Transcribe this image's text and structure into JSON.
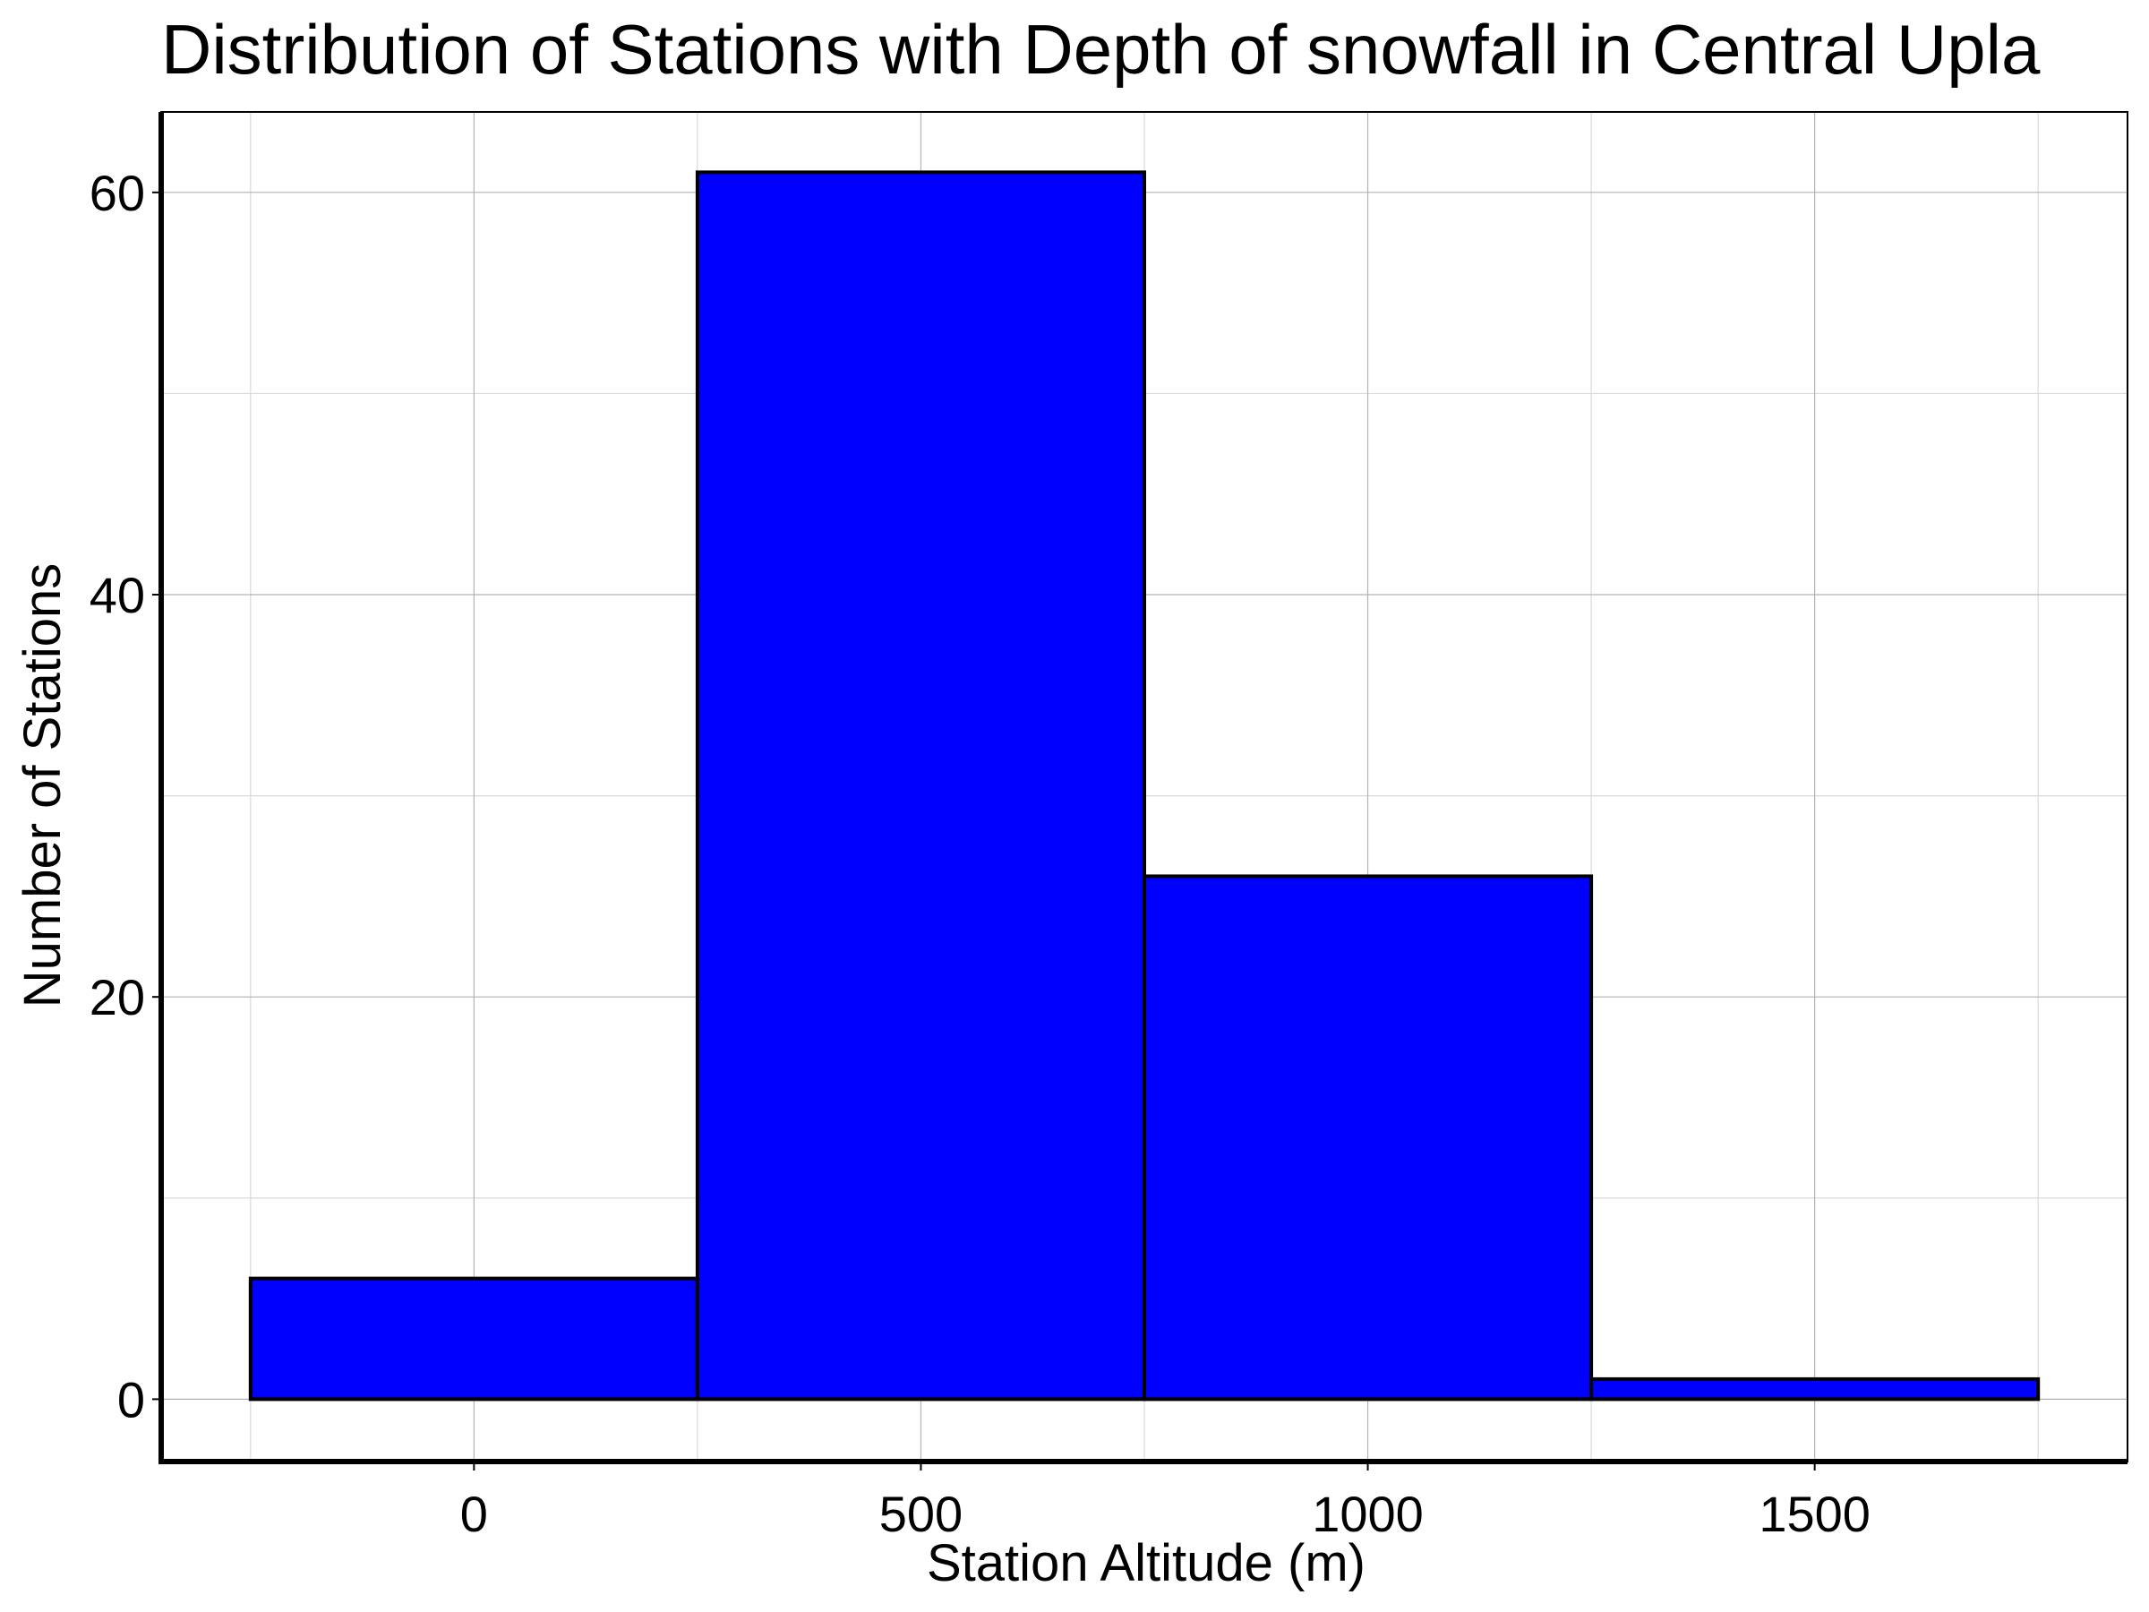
{
  "chart_data": {
    "type": "bar",
    "subtype": "histogram",
    "title": "Distribution of Stations with Depth of snowfall in Central Upla",
    "xlabel": "Station Altitude (m)",
    "ylabel": "Number of Stations",
    "bins": [
      {
        "start": -250,
        "end": 250,
        "value": 6
      },
      {
        "start": 250,
        "end": 750,
        "value": 61
      },
      {
        "start": 750,
        "end": 1250,
        "value": 26
      },
      {
        "start": 1250,
        "end": 1750,
        "value": 1
      }
    ],
    "xlim": [
      -350,
      1850
    ],
    "ylim": [
      -3.1,
      64
    ],
    "xticks": [
      0,
      500,
      1000,
      1500
    ],
    "xtick_labels": [
      "0",
      "500",
      "1000",
      "1500"
    ],
    "xticks_minor": [
      -250,
      250,
      750,
      1250,
      1750
    ],
    "yticks": [
      0,
      20,
      40,
      60
    ],
    "ytick_labels": [
      "0",
      "20",
      "40",
      "60"
    ],
    "yticks_minor": [
      10,
      30,
      50
    ],
    "grid": true,
    "bar_color": "#0000ff",
    "bar_edge_color": "#000000"
  }
}
